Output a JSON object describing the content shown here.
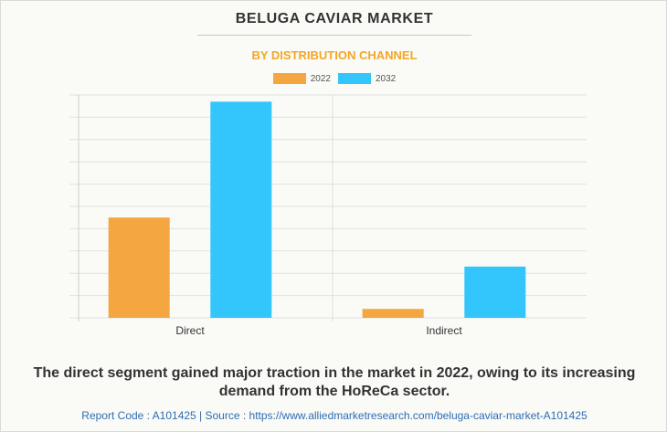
{
  "title": "BELUGA CAVIAR MARKET",
  "subtitle": "BY DISTRIBUTION CHANNEL",
  "caption": "The direct segment gained major traction in the market in 2022, owing to its increasing demand from the HoReCa sector.",
  "footer": "Report Code : A101425  |  Source : https://www.alliedmarketresearch.com/beluga-caviar-market-A101425",
  "colors": {
    "accent": "#f5a623",
    "series_2022": "#f4a640",
    "series_2032": "#33c6fc",
    "grid": "#e0e0e0",
    "footer": "#2e6db4"
  },
  "chart_data": {
    "type": "bar",
    "categories": [
      "Direct",
      "Indirect"
    ],
    "series": [
      {
        "name": "2022",
        "values": [
          4.5,
          0.4
        ]
      },
      {
        "name": "2032",
        "values": [
          9.7,
          2.3
        ]
      }
    ],
    "ylim": [
      0,
      10
    ],
    "y_tick_labels_shown": false,
    "grid": true,
    "legend": "top-center"
  }
}
